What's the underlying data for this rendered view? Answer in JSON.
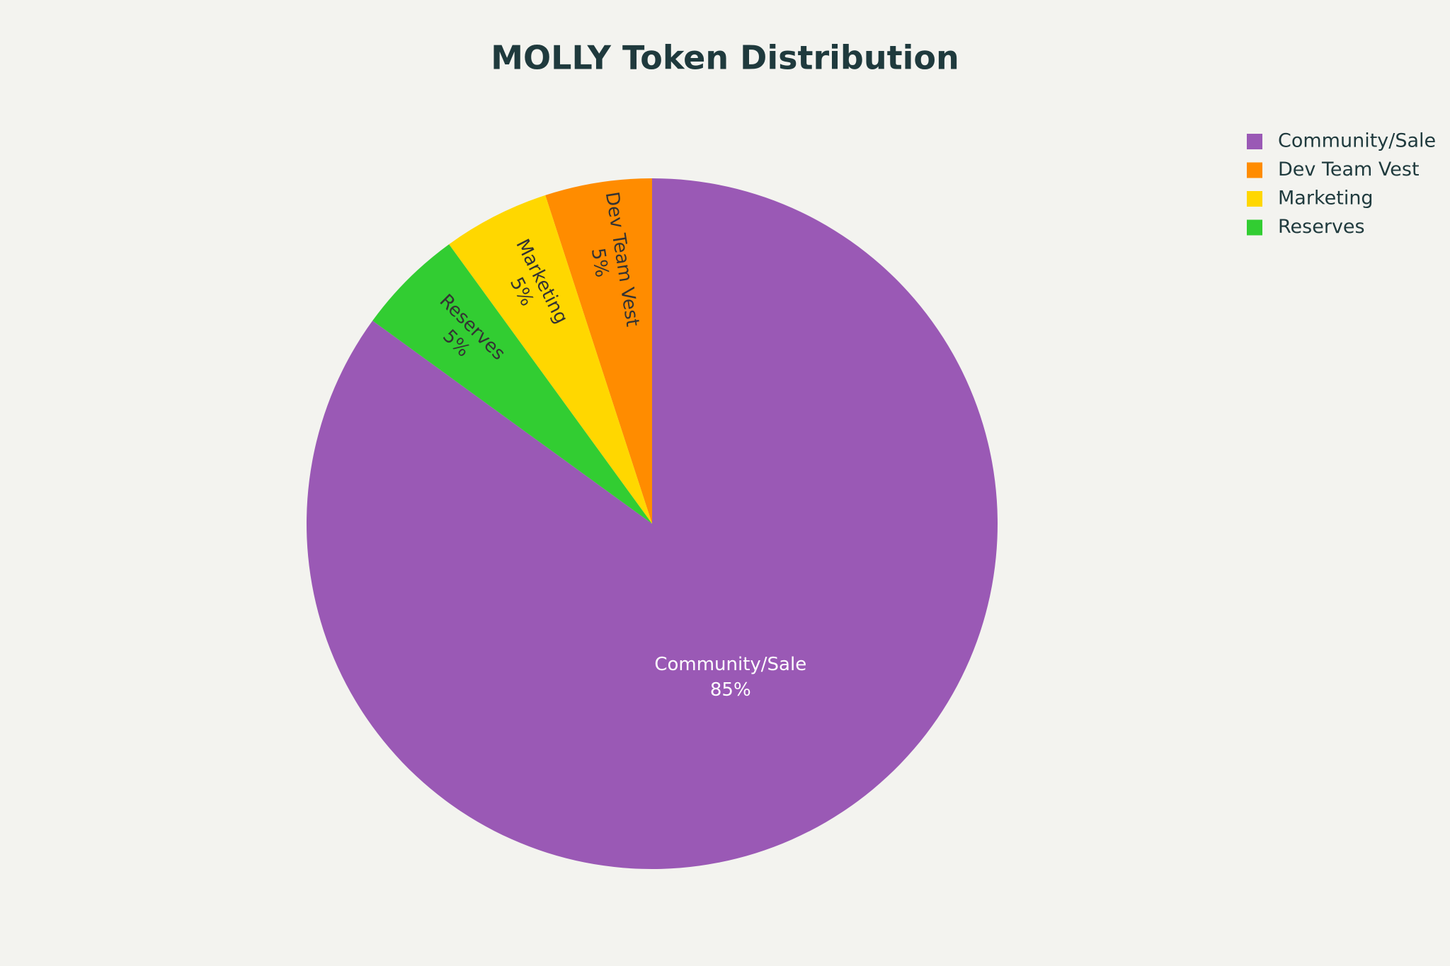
{
  "chart_data": {
    "type": "pie",
    "title": "MOLLY Token Distribution",
    "categories": [
      "Community/Sale",
      "Dev Team Vest",
      "Marketing",
      "Reserves"
    ],
    "values": [
      85,
      5,
      5,
      5
    ],
    "value_labels": [
      "85%",
      "5%",
      "5%",
      "5%"
    ],
    "colors": [
      "#9a59b5",
      "#ff8c00",
      "#ffd700",
      "#32cd32"
    ],
    "direction": "counterclockwise",
    "legend": "top-right"
  }
}
